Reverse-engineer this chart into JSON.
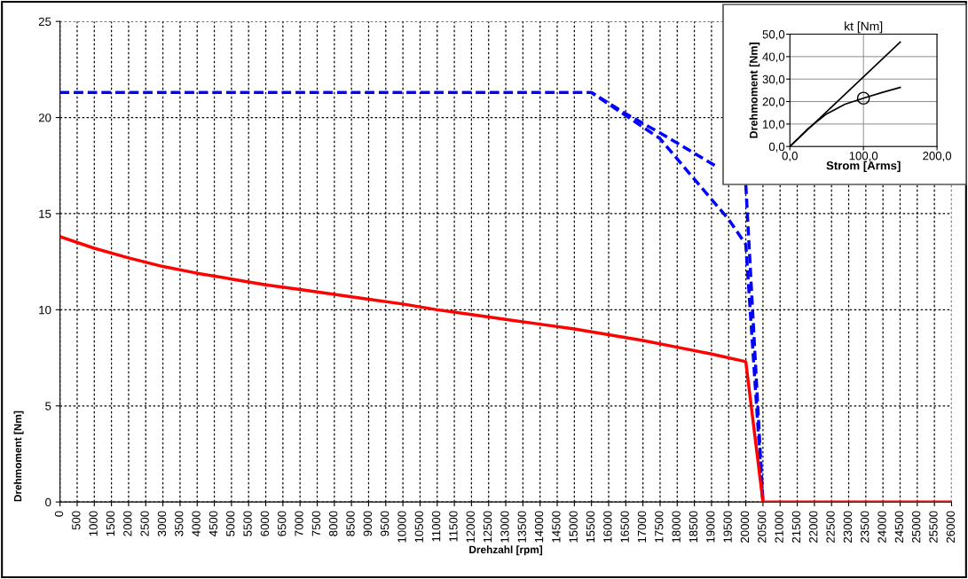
{
  "chart_data": [
    {
      "type": "line",
      "xlabel": "Drehzahl [rpm]",
      "ylabel": "Drehmoment [Nm]",
      "xlim": [
        0,
        26000
      ],
      "ylim": [
        0,
        25
      ],
      "xticks": [
        0,
        500,
        1000,
        1500,
        2000,
        2500,
        3000,
        3500,
        4000,
        4500,
        5000,
        5500,
        6000,
        6500,
        7000,
        7500,
        8000,
        8500,
        9000,
        9500,
        10000,
        10500,
        11000,
        11500,
        12000,
        12500,
        13000,
        13500,
        14000,
        14500,
        15000,
        15500,
        16000,
        16500,
        17000,
        17500,
        18000,
        18500,
        19000,
        19500,
        20000,
        20500,
        21000,
        21500,
        22000,
        22500,
        23000,
        23500,
        24000,
        24500,
        25000,
        25500,
        26000
      ],
      "yticks": [
        0,
        5,
        10,
        15,
        20,
        25
      ],
      "grid": true,
      "marker": "none",
      "series": [
        {
          "color": "#0000ff",
          "line_style": "dashed",
          "x": [
            0,
            15500,
            16500,
            17500,
            18400,
            19500,
            20000,
            20500
          ],
          "values": [
            21.3,
            21.3,
            20.1,
            18.9,
            17.0,
            14.7,
            13.4,
            0
          ]
        },
        {
          "color": "#0000ff",
          "line_style": "dashed",
          "x": [
            0,
            15500,
            16500,
            17500,
            19100,
            19700,
            20000,
            20500
          ],
          "values": [
            21.3,
            21.3,
            20.2,
            19.2,
            17.5,
            null,
            16.5,
            0
          ]
        },
        {
          "color": "#ff0000",
          "line_style": "solid",
          "x": [
            0,
            1000,
            2000,
            3000,
            4000,
            5000,
            6000,
            7000,
            8000,
            9000,
            10000,
            11000,
            12000,
            13000,
            14000,
            15000,
            16000,
            17000,
            18000,
            19000,
            20000,
            20500,
            26000
          ],
          "values": [
            13.8,
            13.2,
            12.7,
            12.25,
            11.9,
            11.6,
            11.3,
            11.05,
            10.8,
            10.55,
            10.3,
            10.0,
            9.75,
            9.5,
            9.25,
            9.0,
            8.7,
            8.4,
            8.05,
            7.7,
            7.3,
            0,
            0
          ]
        }
      ]
    },
    {
      "type": "line",
      "title": "kt [Nm]",
      "xlabel": "Strom [Arms]",
      "ylabel": "Drehmoment [Nm]",
      "xlim": [
        0,
        200
      ],
      "ylim": [
        0,
        50
      ],
      "xticks": [
        {
          "value": 0,
          "label": "0,0"
        },
        {
          "value": 100,
          "label": "100,0"
        },
        {
          "value": 200,
          "label": "200,0"
        }
      ],
      "yticks": [
        {
          "value": 0,
          "label": "0,0"
        },
        {
          "value": 10,
          "label": "10,0"
        },
        {
          "value": 20,
          "label": "20,0"
        },
        {
          "value": 30,
          "label": "30,0"
        },
        {
          "value": 40,
          "label": "40,0"
        },
        {
          "value": 50,
          "label": "50,0"
        }
      ],
      "grid": true,
      "series": [
        {
          "color": "#000000",
          "x": [
            0,
            150
          ],
          "values": [
            0,
            46.5
          ]
        },
        {
          "color": "#000000",
          "x": [
            0,
            25,
            50,
            75,
            100,
            125,
            150
          ],
          "values": [
            0,
            8,
            14.5,
            18.8,
            21.5,
            24,
            26.3
          ]
        },
        {
          "type": "scatter",
          "color": "#000000",
          "marker": "circle",
          "x": [
            100
          ],
          "values": [
            21.5
          ]
        }
      ]
    }
  ]
}
